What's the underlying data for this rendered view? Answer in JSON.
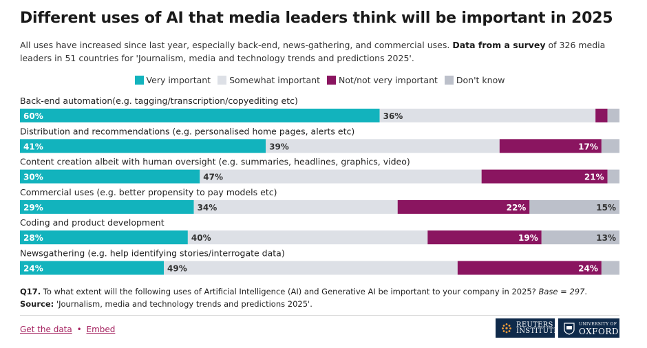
{
  "header": {
    "title": "Different uses of AI that media leaders think will be important in 2025",
    "subtitle_plain": "All uses have increased since last year, especially back-end, news-gathering, and commercial uses. ",
    "subtitle_bold": "Data from a survey",
    "subtitle_rest": " of 326 media leaders in 51 countries for 'Journalism, media and technology trends and predictions 2025'."
  },
  "colors": {
    "very_important": "#12b3bd",
    "somewhat_important": "#dde0e6",
    "not_important": "#8a1560",
    "dont_know": "#bcc0ca"
  },
  "chart_data": {
    "type": "bar",
    "orientation": "horizontal",
    "stacked": true,
    "categories": [
      "Back-end automation(e.g. tagging/transcription/copyediting etc)",
      "Distribution and recommendations (e.g. personalised home pages, alerts etc)",
      "Content creation albeit with human oversight (e.g. summaries, headlines, graphics, video)",
      "Commercial uses (e.g. better propensity to pay models etc)",
      "Coding and product development",
      "Newsgathering (e.g. help identifying stories/interrogate data)"
    ],
    "series": [
      {
        "name": "Very important",
        "values": [
          60,
          41,
          30,
          29,
          28,
          24
        ],
        "labels": [
          "60%",
          "41%",
          "30%",
          "29%",
          "28%",
          "24%"
        ]
      },
      {
        "name": "Somewhat important",
        "values": [
          36,
          39,
          47,
          34,
          40,
          49
        ],
        "labels": [
          "36%",
          "39%",
          "47%",
          "34%",
          "40%",
          "49%"
        ]
      },
      {
        "name": "Not/not very important",
        "values": [
          2,
          17,
          21,
          22,
          19,
          24
        ],
        "labels": [
          "",
          "17%",
          "21%",
          "22%",
          "19%",
          "24%"
        ]
      },
      {
        "name": "Don't know",
        "values": [
          2,
          3,
          2,
          15,
          13,
          3
        ],
        "labels": [
          "",
          "",
          "",
          "15%",
          "13%",
          ""
        ]
      }
    ],
    "xlim": [
      0,
      100
    ],
    "legend": "top-center"
  },
  "footer": {
    "question_label": "Q17.",
    "question_text": " To what extent will the following uses of Artificial Intelligence (AI) and Generative AI be important to your company in 2025? ",
    "base_text": "Base = 297",
    "base_end": ".",
    "source_label": "Source:",
    "source_text": " 'Journalism, media and technology trends and predictions 2025'.",
    "get_data": "Get the data",
    "separator": "•",
    "embed": "Embed"
  },
  "logos": {
    "reuters_line1": "REUTERS",
    "reuters_line2": "INSTITUTE",
    "oxford_line1": "UNIVERSITY OF",
    "oxford_line2": "OXFORD"
  }
}
